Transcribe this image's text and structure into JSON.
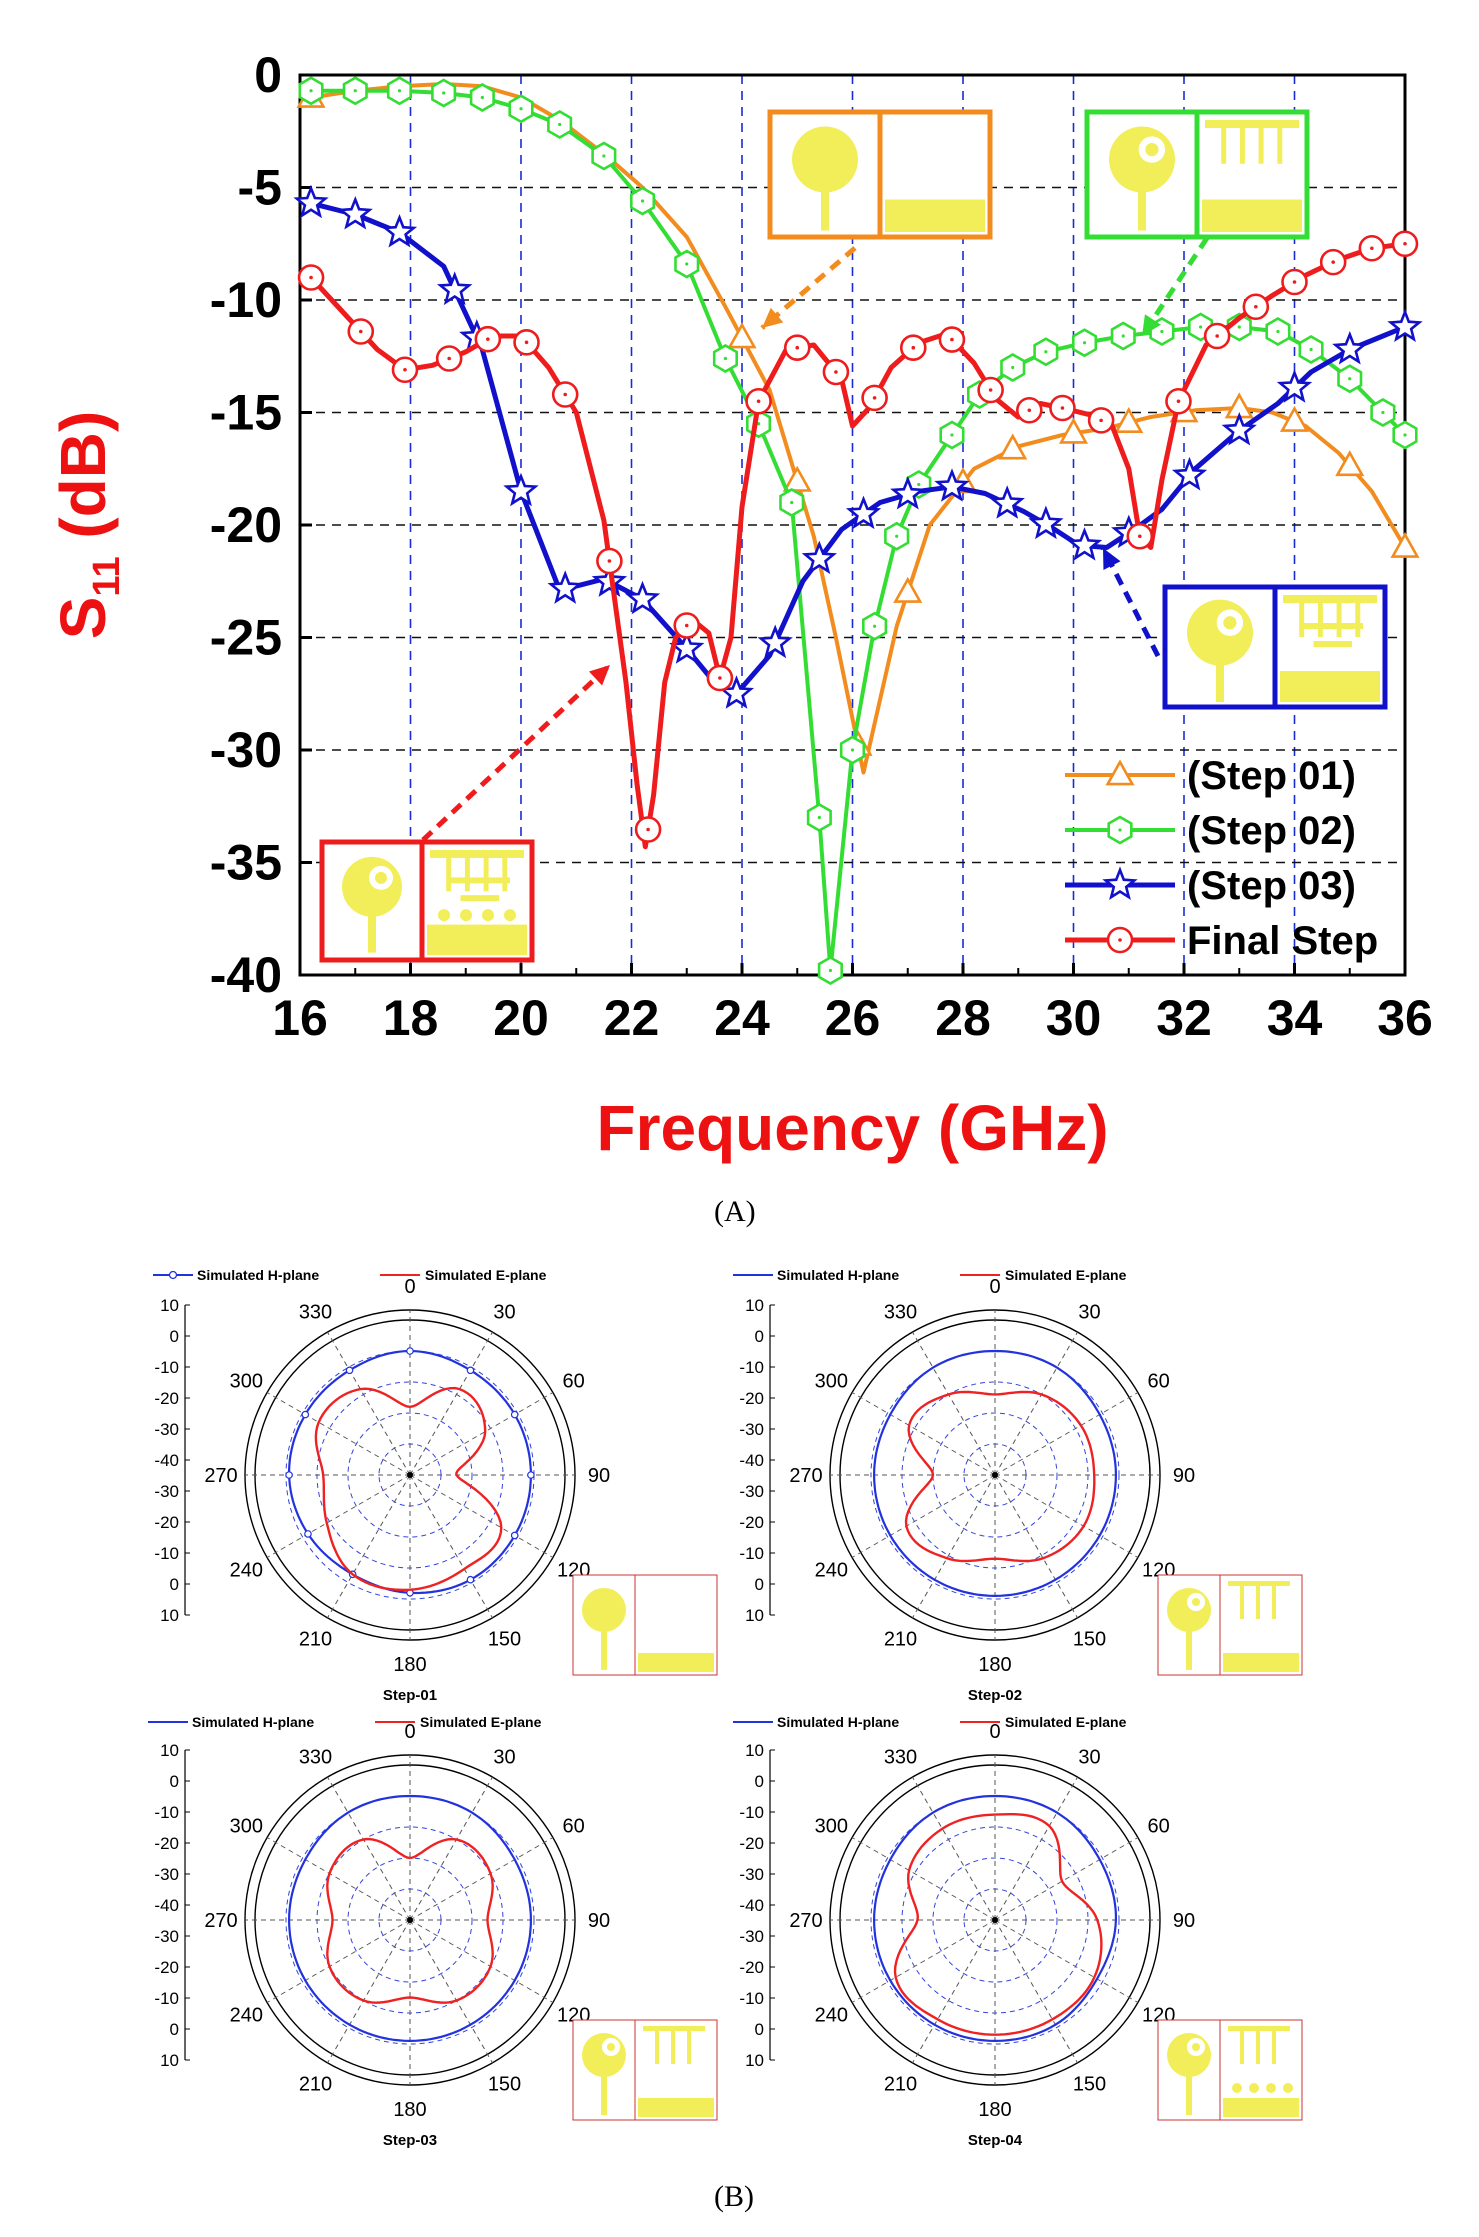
{
  "colors": {
    "step01": "#f28c1e",
    "step02": "#33dd33",
    "step03": "#1111cc",
    "final": "#ee1c1c",
    "hplane": "#2233dd",
    "eplane": "#ee2222",
    "patch": "#f2ee5a",
    "axis_red": "#ee1111"
  },
  "chart_data": [
    {
      "type": "line",
      "xlabel": "Frequency (GHz)",
      "ylabel_main": "S",
      "ylabel_sub": "11",
      "ylabel_unit": " (dB)",
      "xlim": [
        16,
        36
      ],
      "ylim": [
        -40,
        0
      ],
      "xticks": [
        "16",
        "18",
        "20",
        "22",
        "24",
        "26",
        "28",
        "30",
        "32",
        "34",
        "36"
      ],
      "yticks": [
        "0",
        "-5",
        "-10",
        "-15",
        "-20",
        "-25",
        "-30",
        "-35",
        "-40"
      ],
      "grid": "dashed",
      "legend": "bottom-right",
      "series": [
        {
          "name": "(Step 01)",
          "marker": "triangle",
          "color_key": "step01",
          "width": 4,
          "x": [
            16.2,
            17,
            17.8,
            18.6,
            19.3,
            20,
            20.7,
            21.5,
            22.2,
            23,
            23.7,
            24.5,
            25.3,
            25.7,
            26.2,
            26.8,
            27.4,
            28.2,
            29,
            29.8,
            30.6,
            31.4,
            32.2,
            33,
            33.6,
            34.2,
            34.8,
            35.4,
            36
          ],
          "y": [
            -1,
            -0.7,
            -0.5,
            -0.4,
            -0.5,
            -1,
            -2,
            -3.5,
            -5,
            -7.2,
            -10.3,
            -14,
            -20.5,
            -25,
            -31,
            -24.5,
            -20,
            -17.5,
            -16.5,
            -16,
            -15.7,
            -15.2,
            -14.9,
            -14.8,
            -15,
            -15.6,
            -16.8,
            -18.5,
            -21
          ],
          "markers_x": [
            16.2,
            24,
            25,
            26.1,
            27,
            28,
            28.9,
            30,
            31,
            32,
            33,
            34,
            35,
            36
          ]
        },
        {
          "name": "(Step 02)",
          "marker": "hexagon",
          "color_key": "step02",
          "width": 4,
          "x": [
            16.2,
            17,
            17.8,
            18.6,
            19.3,
            20,
            20.7,
            21.5,
            22.2,
            23,
            23.7,
            24.3,
            24.9,
            25.4,
            25.6,
            26,
            26.4,
            26.8,
            27.2,
            27.8,
            28.3,
            28.9,
            29.5,
            30.2,
            30.9,
            31.6,
            32.3,
            33,
            33.7,
            34.3,
            35,
            35.6,
            36
          ],
          "y": [
            -0.7,
            -0.7,
            -0.7,
            -0.8,
            -1,
            -1.5,
            -2.2,
            -3.6,
            -5.6,
            -8.4,
            -12.6,
            -15.5,
            -19,
            -33,
            -39.8,
            -30,
            -24.5,
            -20.5,
            -18.2,
            -16,
            -14.2,
            -13,
            -12.3,
            -11.9,
            -11.6,
            -11.4,
            -11.2,
            -11.2,
            -11.4,
            -12.2,
            -13.5,
            -15,
            -16
          ]
        },
        {
          "name": "(Step 03)",
          "marker": "star",
          "color_key": "step03",
          "width": 5,
          "x": [
            16.2,
            17,
            17.8,
            18.6,
            19.3,
            20,
            20.7,
            21.5,
            22.2,
            23,
            23.5,
            23.9,
            24.5,
            25.1,
            25.8,
            26.5,
            27.2,
            27.8,
            28.4,
            29.1,
            29.6,
            30.1,
            30.6,
            31.1,
            31.6,
            32.2,
            33,
            33.7,
            34.3,
            35,
            35.6,
            36
          ],
          "y": [
            -5.7,
            -6.2,
            -7,
            -8.5,
            -12.2,
            -18.5,
            -22.9,
            -22.4,
            -23.3,
            -25.5,
            -27,
            -27.5,
            -25.8,
            -22.5,
            -20.2,
            -19,
            -18.5,
            -18.3,
            -18.6,
            -19.4,
            -20.1,
            -20.9,
            -21,
            -20.2,
            -19.3,
            -17.5,
            -15.8,
            -14.6,
            -13.2,
            -12.2,
            -11.6,
            -11.2
          ],
          "markers_x": [
            16.2,
            17,
            17.8,
            18.8,
            19.2,
            20,
            20.8,
            21.6,
            22.2,
            23,
            23.9,
            24.6,
            25.4,
            26.2,
            27,
            27.8,
            28.8,
            29.5,
            30.2,
            31,
            32.1,
            33,
            34,
            35,
            36
          ]
        },
        {
          "name": "Final Step",
          "marker": "circle",
          "color_key": "final",
          "width": 5,
          "x": [
            16.2,
            16.8,
            17.4,
            17.9,
            18.4,
            19,
            19.5,
            20,
            20.5,
            21,
            21.5,
            21.9,
            22.1,
            22.25,
            22.4,
            22.6,
            22.8,
            23.1,
            23.4,
            23.6,
            23.8,
            24,
            24.3,
            24.8,
            25.3,
            25.8,
            26,
            26.3,
            26.7,
            27.2,
            27.7,
            28.2,
            28.6,
            29,
            29.4,
            29.8,
            30.3,
            30.7,
            31,
            31.2,
            31.4,
            31.6,
            31.9,
            32.4,
            33,
            33.6,
            34.2,
            34.8,
            35.4,
            36
          ],
          "y": [
            -9,
            -10.6,
            -12.2,
            -13.1,
            -12.9,
            -12.3,
            -11.6,
            -11.6,
            -13,
            -15,
            -19.8,
            -27,
            -31.5,
            -34.3,
            -32,
            -27,
            -25,
            -24.2,
            -24.8,
            -26.8,
            -25,
            -19.2,
            -14.5,
            -12.2,
            -12,
            -13.5,
            -15.6,
            -14.8,
            -13,
            -11.9,
            -11.5,
            -12.8,
            -14.4,
            -15.2,
            -14.6,
            -14.8,
            -15.1,
            -15.6,
            -17.5,
            -20.5,
            -21,
            -18,
            -14.5,
            -12,
            -10.8,
            -9.8,
            -8.9,
            -8.2,
            -7.7,
            -7.5
          ],
          "markers_x": [
            16.2,
            17.1,
            17.9,
            18.7,
            19.4,
            20.1,
            20.8,
            21.6,
            22.3,
            23,
            23.6,
            24.3,
            25,
            25.7,
            26.4,
            27.1,
            27.8,
            28.5,
            29.2,
            29.8,
            30.5,
            31.2,
            31.9,
            32.6,
            33.3,
            34,
            34.7,
            35.4,
            36
          ]
        }
      ],
      "caption": "(A)"
    },
    {
      "type": "polar",
      "panels": [
        {
          "step_label": "Step-01",
          "legend_h": "Simulated H-plane",
          "legend_e": "Simulated E-plane",
          "h_markers": true,
          "angles": [
            "0",
            "30",
            "60",
            "90",
            "120",
            "150",
            "180",
            "210",
            "240",
            "270",
            "300",
            "330"
          ],
          "radial_ticks": [
            "10",
            "0",
            "-10",
            "-20",
            "-30",
            "-40",
            "-30",
            "-20",
            "-10",
            "0",
            "10"
          ],
          "h_plane_db": [
            0,
            -1,
            -1,
            -1,
            -1,
            -1,
            -2,
            -3,
            -2,
            -1,
            -1,
            -1
          ],
          "e_plane_db": [
            -18,
            -8,
            -12,
            -25,
            -6,
            -5,
            -3,
            -3,
            -9,
            -12,
            -6,
            -8
          ]
        },
        {
          "step_label": "Step-02",
          "legend_h": "Simulated H-plane",
          "legend_e": "Simulated E-plane",
          "h_markers": false,
          "angles": [
            "0",
            "30",
            "60",
            "90",
            "120",
            "150",
            "180",
            "210",
            "240",
            "270",
            "300",
            "330"
          ],
          "radial_ticks": [
            "10",
            "0",
            "-10",
            "-20",
            "-30",
            "-40",
            "-30",
            "-20",
            "-10",
            "0",
            "10"
          ],
          "h_plane_db": [
            0,
            0,
            -1,
            -1,
            -1,
            -1,
            -1,
            -1,
            -1,
            -1,
            -1,
            0
          ],
          "e_plane_db": [
            -14,
            -10,
            -8,
            -8,
            -7,
            -9,
            -13,
            -9,
            -7,
            -20,
            -8,
            -10
          ]
        },
        {
          "step_label": "Step-03",
          "legend_h": "Simulated H-plane",
          "legend_e": "Simulated E-plane",
          "h_markers": false,
          "angles": [
            "0",
            "30",
            "60",
            "90",
            "120",
            "150",
            "180",
            "210",
            "240",
            "270",
            "300",
            "330"
          ],
          "radial_ticks": [
            "10",
            "0",
            "-10",
            "-20",
            "-30",
            "-40",
            "-30",
            "-20",
            "-10",
            "0",
            "10"
          ],
          "h_plane_db": [
            0,
            0,
            -1,
            -1,
            -1,
            -1,
            -1,
            -1,
            -1,
            -1,
            -1,
            0
          ],
          "e_plane_db": [
            -20,
            -10,
            -10,
            -15,
            -10,
            -10,
            -15,
            -10,
            -10,
            -15,
            -10,
            -10
          ]
        },
        {
          "step_label": "Step-04",
          "legend_h": "Simulated H-plane",
          "legend_e": "Simulated E-plane",
          "h_markers": false,
          "angles": [
            "0",
            "30",
            "60",
            "90",
            "120",
            "150",
            "180",
            "210",
            "240",
            "270",
            "300",
            "330"
          ],
          "radial_ticks": [
            "10",
            "0",
            "-10",
            "-20",
            "-30",
            "-40",
            "-30",
            "-20",
            "-10",
            "0",
            "10"
          ],
          "h_plane_db": [
            0,
            0,
            -1,
            -1,
            -2,
            -1,
            -1,
            -1,
            -1,
            -1,
            -1,
            0
          ],
          "e_plane_db": [
            -6,
            -5,
            -15,
            -7,
            -3,
            -3,
            -3,
            -3,
            -3,
            -15,
            -8,
            -6
          ]
        }
      ],
      "caption": "(B)"
    }
  ]
}
